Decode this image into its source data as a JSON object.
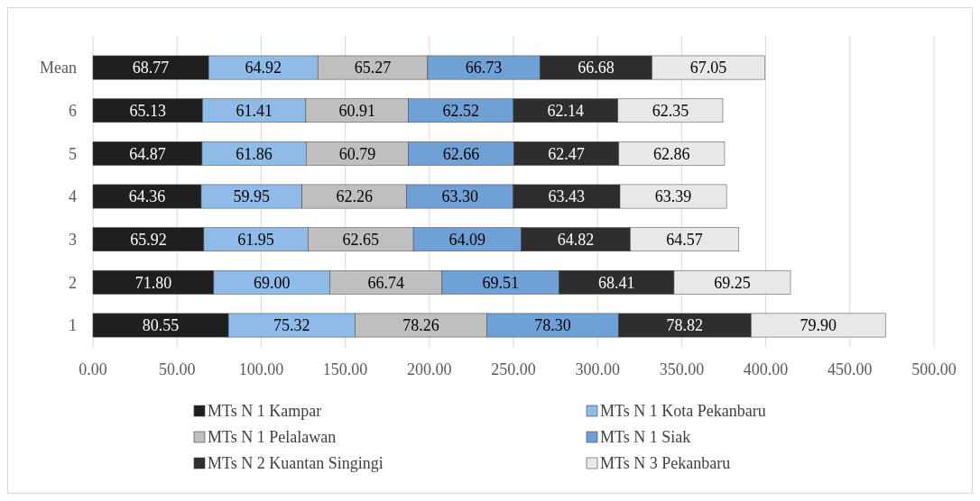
{
  "chart_data": {
    "type": "bar",
    "orientation": "horizontal",
    "stacked": true,
    "categories": [
      "Mean",
      "6",
      "5",
      "4",
      "3",
      "2",
      "1"
    ],
    "series": [
      {
        "name": "MTs N 1 Kampar",
        "color": "#1f1f1f",
        "values": [
          68.77,
          65.13,
          64.87,
          64.36,
          65.92,
          71.8,
          80.55
        ],
        "value_labels": [
          "68.77",
          "65.13",
          "64.87",
          "64.36",
          "65.92",
          "71.80",
          "80.55"
        ]
      },
      {
        "name": "MTs N 1 Kota Pekanbaru",
        "color": "#8fbbe8",
        "values": [
          64.92,
          61.41,
          61.86,
          59.95,
          61.95,
          69.0,
          75.32
        ],
        "value_labels": [
          "64.92",
          "61.41",
          "61.86",
          "59.95",
          "61.95",
          "69.00",
          "75.32"
        ]
      },
      {
        "name": "MTs N 1 Pelalawan",
        "color": "#bfbfbf",
        "values": [
          65.27,
          60.91,
          60.79,
          62.26,
          62.65,
          66.74,
          78.26
        ],
        "value_labels": [
          "65.27",
          "60.91",
          "60.79",
          "62.26",
          "62.65",
          "66.74",
          "78.26"
        ]
      },
      {
        "name": "MTs N 1 Siak",
        "color": "#6fa0d6",
        "values": [
          66.73,
          62.52,
          62.66,
          63.3,
          64.09,
          69.51,
          78.3
        ],
        "value_labels": [
          "66.73",
          "62.52",
          "62.66",
          "63.30",
          "64.09",
          "69.51",
          "78.30"
        ]
      },
      {
        "name": "MTs N 2 Kuantan Singingi",
        "color": "#2e2e2e",
        "values": [
          66.68,
          62.14,
          62.47,
          63.43,
          64.82,
          68.41,
          78.82
        ],
        "value_labels": [
          "66.68",
          "62.14",
          "62.47",
          "63.43",
          "64.82",
          "68.41",
          "78.82"
        ]
      },
      {
        "name": "MTs N 3 Pekanbaru",
        "color": "#e8e8e8",
        "values": [
          67.05,
          62.35,
          62.86,
          63.39,
          64.57,
          69.25,
          79.9
        ],
        "value_labels": [
          "67.05",
          "62.35",
          "62.86",
          "63.39",
          "64.57",
          "69.25",
          "79.90"
        ]
      }
    ],
    "xlim": [
      0,
      500
    ],
    "xticks": [
      {
        "value": 0,
        "label": "0.00"
      },
      {
        "value": 50,
        "label": "50.00"
      },
      {
        "value": 100,
        "label": "100.00"
      },
      {
        "value": 150,
        "label": "150.00"
      },
      {
        "value": 200,
        "label": "200.00"
      },
      {
        "value": 250,
        "label": "250.00"
      },
      {
        "value": 300,
        "label": "300.00"
      },
      {
        "value": 350,
        "label": "350.00"
      },
      {
        "value": 400,
        "label": "400.00"
      },
      {
        "value": 450,
        "label": "450.00"
      },
      {
        "value": 500,
        "label": "500.00"
      }
    ],
    "grid": "x",
    "legend": "bottom"
  }
}
